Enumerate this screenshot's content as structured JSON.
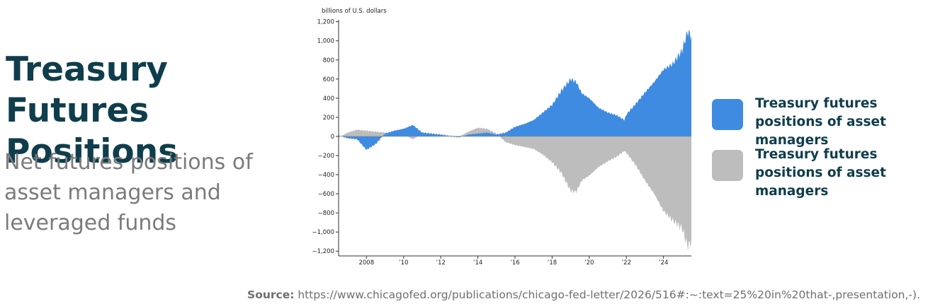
{
  "title": "Treasury Futures Positions",
  "subtitle": "Net futures positions of asset managers and leveraged funds",
  "source": {
    "label": "Source:",
    "text": " https://www.chicagofed.org/publications/chicago-fed-letter/2026/516#:~:text=25%20in%20that-,presentation,-)."
  },
  "colors": {
    "asset_managers": "#3f8be1",
    "leveraged_funds": "#bdbdbd",
    "title": "#0f3d4c"
  },
  "legend": [
    {
      "label": "Treasury futures positions of asset managers",
      "color": "#3f8be1"
    },
    {
      "label": "Treasury futures positions of asset managers",
      "color": "#bdbdbd"
    }
  ],
  "chart_data": {
    "type": "area",
    "ylabel": "billions of U.S. dollars",
    "ylim": [
      -1250,
      1220
    ],
    "yticks": [
      1200,
      1000,
      800,
      600,
      400,
      200,
      0,
      -200,
      -400,
      -600,
      -800,
      -1000,
      -1200
    ],
    "ytick_labels": [
      "1,200",
      "1,000",
      "800",
      "600",
      "400",
      "200",
      "0",
      "−200",
      "−400",
      "−600",
      "−800",
      "−1,000",
      "−1,200"
    ],
    "xlim": [
      2006.5,
      2025.5
    ],
    "xticks": [
      2008,
      2010,
      2012,
      2014,
      2016,
      2018,
      2020,
      2022,
      2024
    ],
    "xtick_labels": [
      "2008",
      "’10",
      "’12",
      "’14",
      "’16",
      "’18",
      "’20",
      "’22",
      "’24"
    ],
    "grid": false,
    "series": [
      {
        "name": "Treasury futures positions of asset managers",
        "color": "#3f8be1",
        "x": [
          2006.5,
          2007.0,
          2007.5,
          2008.0,
          2008.5,
          2009.0,
          2009.5,
          2010.0,
          2010.5,
          2011.0,
          2011.5,
          2012.0,
          2012.5,
          2013.0,
          2013.5,
          2014.0,
          2014.5,
          2015.0,
          2015.5,
          2016.0,
          2016.5,
          2017.0,
          2017.5,
          2018.0,
          2018.5,
          2019.0,
          2019.3,
          2019.6,
          2020.0,
          2020.5,
          2021.0,
          2021.5,
          2021.9,
          2022.0,
          2022.5,
          2023.0,
          2023.5,
          2024.0,
          2024.5,
          2025.0,
          2025.3,
          2025.5
        ],
        "y": [
          10,
          -20,
          -30,
          -140,
          -80,
          30,
          60,
          80,
          120,
          40,
          30,
          20,
          0,
          -10,
          20,
          30,
          40,
          20,
          40,
          100,
          130,
          170,
          250,
          330,
          480,
          600,
          570,
          450,
          400,
          300,
          250,
          220,
          170,
          230,
          340,
          460,
          570,
          700,
          760,
          900,
          1100,
          1050
        ]
      },
      {
        "name": "Treasury futures positions of asset managers",
        "color": "#bdbdbd",
        "x": [
          2006.5,
          2007.0,
          2007.5,
          2008.0,
          2008.5,
          2009.0,
          2009.5,
          2010.0,
          2010.5,
          2011.0,
          2011.5,
          2012.0,
          2012.5,
          2013.0,
          2013.5,
          2014.0,
          2014.5,
          2015.0,
          2015.5,
          2016.0,
          2016.5,
          2017.0,
          2017.5,
          2018.0,
          2018.5,
          2019.0,
          2019.3,
          2019.6,
          2020.0,
          2020.5,
          2021.0,
          2021.5,
          2021.9,
          2022.0,
          2022.5,
          2023.0,
          2023.5,
          2024.0,
          2024.5,
          2025.0,
          2025.3,
          2025.5
        ],
        "y": [
          -10,
          40,
          70,
          60,
          50,
          40,
          30,
          20,
          -30,
          30,
          20,
          20,
          10,
          0,
          50,
          90,
          80,
          30,
          -60,
          -90,
          -110,
          -130,
          -190,
          -270,
          -380,
          -570,
          -580,
          -460,
          -410,
          -320,
          -260,
          -210,
          -150,
          -170,
          -300,
          -460,
          -600,
          -780,
          -880,
          -960,
          -1150,
          -1100
        ]
      }
    ]
  }
}
